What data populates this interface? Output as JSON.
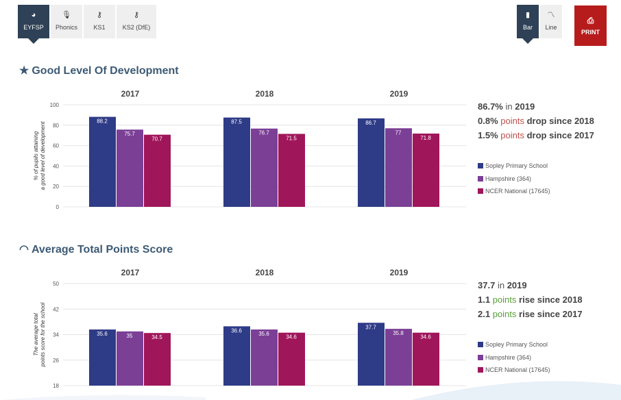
{
  "tabs": [
    {
      "label": "EYFSP",
      "icon": "gauge-icon",
      "active": true
    },
    {
      "label": "Phonics",
      "icon": "microphone-icon",
      "active": false
    },
    {
      "label": "KS1",
      "icon": "key-icon",
      "active": false
    },
    {
      "label": "KS2 (DfE)",
      "icon": "key-icon",
      "active": false
    }
  ],
  "chart_tabs": [
    {
      "label": "Bar",
      "icon": "bar-chart-icon",
      "active": true
    },
    {
      "label": "Line",
      "icon": "line-chart-icon",
      "active": false
    }
  ],
  "print_label": "PRINT",
  "colors": {
    "series": [
      "#2e3b87",
      "#7b3f96",
      "#a0165a"
    ],
    "accent": "#3d5a75",
    "print": "#b71c1c"
  },
  "sections": [
    {
      "title": "Good Level Of Development",
      "icon": "star-icon",
      "stats": {
        "headline_value": "86.7%",
        "headline_suffix": "in",
        "headline_year": "2019",
        "line1_value": "0.8%",
        "line1_text": "points",
        "line1_strong": "drop since 2018",
        "line2_value": "1.5%",
        "line2_text": "points",
        "line2_strong": "drop since 2017"
      },
      "legend": [
        "Sopley Primary School",
        "Hampshire (364)",
        "NCER National (17645)"
      ]
    },
    {
      "title": "Average Total Points Score",
      "icon": "speedometer-icon",
      "stats": {
        "headline_value": "37.7",
        "headline_suffix": "in",
        "headline_year": "2019",
        "line1_value": "1.1",
        "line1_text": "points",
        "line1_strong": "rise since 2018",
        "line2_value": "2.1",
        "line2_text": "points",
        "line2_strong": "rise since 2017"
      },
      "legend": [
        "Sopley Primary School",
        "Hampshire (364)",
        "NCER National (17645)"
      ]
    }
  ],
  "chart_data": [
    {
      "type": "bar",
      "categories": [
        "2017",
        "2018",
        "2019"
      ],
      "series": [
        {
          "name": "Sopley Primary School",
          "values": [
            88.2,
            87.5,
            86.7
          ]
        },
        {
          "name": "Hampshire (364)",
          "values": [
            75.7,
            76.7,
            77
          ]
        },
        {
          "name": "NCER National (17645)",
          "values": [
            70.7,
            71.5,
            71.8
          ]
        }
      ],
      "value_labels": [
        [
          "88.2",
          "87.5",
          "86.7"
        ],
        [
          "75.7",
          "76.7",
          "77"
        ],
        [
          "70.7",
          "71.5",
          "71.8"
        ]
      ],
      "ylabel": "% of pupils attaining a good level of development",
      "ylim": [
        0,
        100
      ],
      "yticks": [
        0,
        20,
        40,
        60,
        80,
        100
      ],
      "grid": true
    },
    {
      "type": "bar",
      "categories": [
        "2017",
        "2018",
        "2019"
      ],
      "series": [
        {
          "name": "Sopley Primary School",
          "values": [
            35.6,
            36.6,
            37.7
          ]
        },
        {
          "name": "Hampshire (364)",
          "values": [
            35,
            35.6,
            35.8
          ]
        },
        {
          "name": "NCER National (17645)",
          "values": [
            34.5,
            34.6,
            34.6
          ]
        }
      ],
      "value_labels": [
        [
          "35.6",
          "36.6",
          "37.7"
        ],
        [
          "35",
          "35.6",
          "35.8"
        ],
        [
          "34.5",
          "34.6",
          "34.6"
        ]
      ],
      "ylabel": "The average total points score for the school",
      "ylim": [
        18,
        50
      ],
      "yticks": [
        18,
        26,
        34,
        42,
        50
      ],
      "grid": true
    }
  ]
}
